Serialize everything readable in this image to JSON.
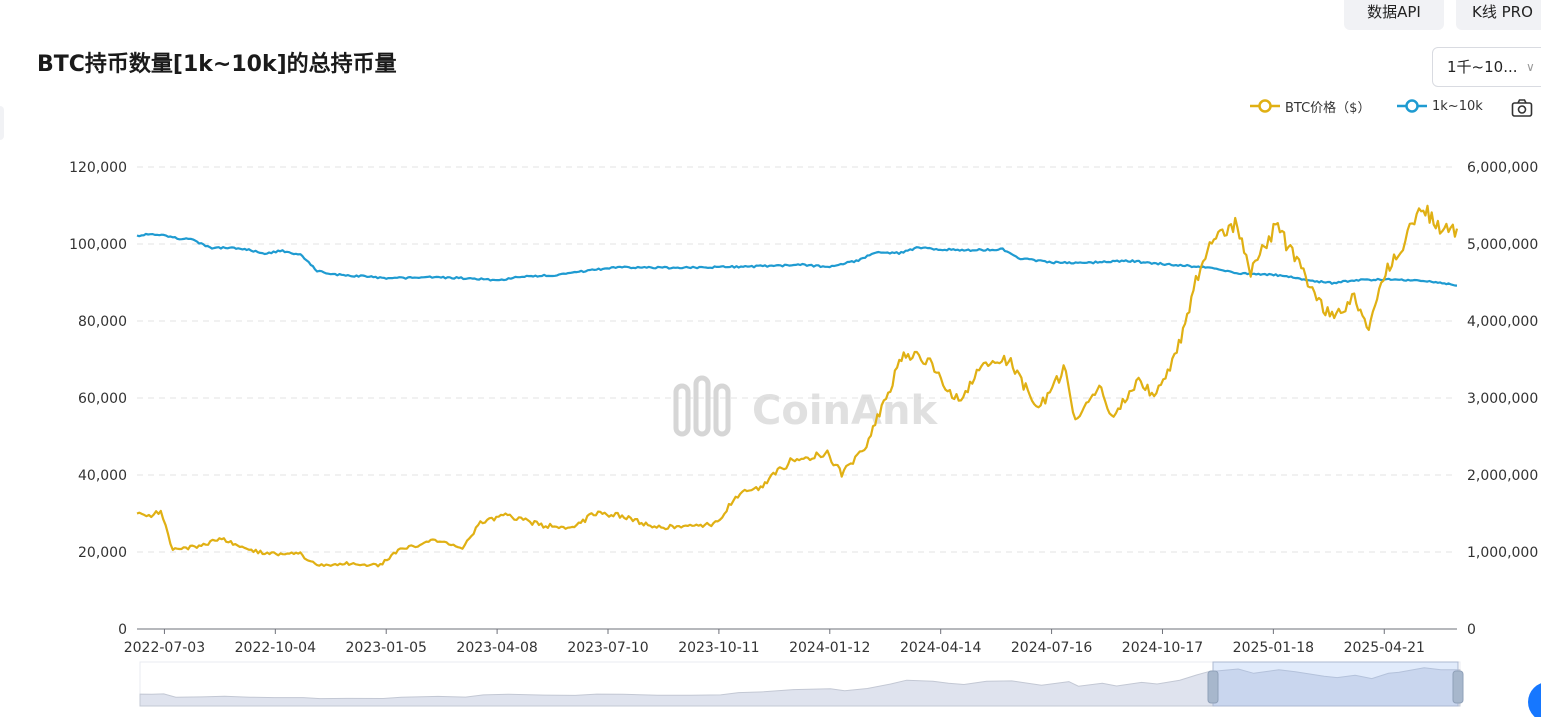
{
  "toolbar": {
    "api_label": "数据API",
    "kline_label": "K线 PRO"
  },
  "title": "BTC持币数量[1k~10k]的总持币量",
  "selector": {
    "value": "1千~10..."
  },
  "colors": {
    "price": "#e0b014",
    "holdings": "#1f9bd1",
    "grid": "#e3e3e3"
  },
  "watermark": "CoinAnk",
  "chart_data": {
    "type": "line",
    "title": "BTC持币数量[1k~10k]的总持币量",
    "legend": "top-right",
    "grid": true,
    "x_ticks": [
      "2022-07-03",
      "2022-10-04",
      "2023-01-05",
      "2023-04-08",
      "2023-07-10",
      "2023-10-11",
      "2024-01-12",
      "2024-04-14",
      "2024-07-16",
      "2024-10-17",
      "2025-01-18",
      "2025-04-21"
    ],
    "x_range": [
      "2022-06-10",
      "2025-06-21"
    ],
    "y_left": {
      "ticks": [
        "120,000",
        "100,000",
        "80,000",
        "60,000",
        "40,000",
        "20,000",
        "0"
      ],
      "range": [
        0,
        120000
      ]
    },
    "y_right": {
      "ticks": [
        "6,000,000",
        "5,000,000",
        "4,000,000",
        "3,000,000",
        "2,000,000",
        "1,000,000",
        "0"
      ],
      "range": [
        0,
        6000000
      ]
    },
    "series": [
      {
        "name": "BTC价格（$）",
        "axis": "left",
        "points": [
          [
            "2022-06-10",
            30000
          ],
          [
            "2022-06-20",
            29500
          ],
          [
            "2022-06-30",
            30500
          ],
          [
            "2022-07-10",
            20500
          ],
          [
            "2022-08-01",
            21500
          ],
          [
            "2022-08-20",
            23500
          ],
          [
            "2022-09-10",
            20500
          ],
          [
            "2022-10-01",
            19500
          ],
          [
            "2022-10-25",
            19500
          ],
          [
            "2022-11-08",
            16500
          ],
          [
            "2022-12-01",
            17000
          ],
          [
            "2022-12-31",
            16600
          ],
          [
            "2023-01-15",
            20500
          ],
          [
            "2023-02-15",
            23000
          ],
          [
            "2023-03-10",
            21000
          ],
          [
            "2023-03-25",
            27500
          ],
          [
            "2023-04-15",
            29500
          ],
          [
            "2023-05-15",
            27000
          ],
          [
            "2023-06-10",
            26000
          ],
          [
            "2023-06-28",
            30000
          ],
          [
            "2023-07-20",
            29500
          ],
          [
            "2023-08-18",
            26500
          ],
          [
            "2023-09-15",
            26500
          ],
          [
            "2023-10-10",
            27500
          ],
          [
            "2023-10-25",
            34500
          ],
          [
            "2023-11-15",
            37000
          ],
          [
            "2023-12-10",
            43500
          ],
          [
            "2024-01-10",
            46000
          ],
          [
            "2024-01-22",
            40000
          ],
          [
            "2024-02-10",
            47000
          ],
          [
            "2024-03-01",
            61000
          ],
          [
            "2024-03-14",
            72000
          ],
          [
            "2024-04-05",
            69000
          ],
          [
            "2024-04-18",
            63000
          ],
          [
            "2024-05-01",
            59000
          ],
          [
            "2024-05-20",
            69000
          ],
          [
            "2024-06-10",
            70000
          ],
          [
            "2024-07-05",
            57000
          ],
          [
            "2024-07-28",
            68000
          ],
          [
            "2024-08-05",
            54000
          ],
          [
            "2024-08-25",
            63000
          ],
          [
            "2024-09-06",
            54500
          ],
          [
            "2024-09-27",
            65500
          ],
          [
            "2024-10-10",
            60500
          ],
          [
            "2024-10-29",
            72000
          ],
          [
            "2024-11-12",
            88000
          ],
          [
            "2024-11-22",
            98000
          ],
          [
            "2024-12-17",
            106000
          ],
          [
            "2024-12-30",
            93000
          ],
          [
            "2025-01-20",
            104000
          ],
          [
            "2025-02-03",
            98000
          ],
          [
            "2025-02-27",
            84000
          ],
          [
            "2025-03-10",
            80000
          ],
          [
            "2025-03-25",
            87000
          ],
          [
            "2025-04-08",
            77000
          ],
          [
            "2025-04-22",
            93000
          ],
          [
            "2025-05-01",
            96000
          ],
          [
            "2025-05-22",
            110000
          ],
          [
            "2025-06-05",
            104000
          ],
          [
            "2025-06-21",
            104000
          ]
        ]
      },
      {
        "name": "1k~10k",
        "axis": "right",
        "points": [
          [
            "2022-06-10",
            5110000
          ],
          [
            "2022-06-25",
            5130000
          ],
          [
            "2022-07-10",
            5080000
          ],
          [
            "2022-07-25",
            5060000
          ],
          [
            "2022-08-10",
            4950000
          ],
          [
            "2022-08-25",
            4950000
          ],
          [
            "2022-09-10",
            4930000
          ],
          [
            "2022-09-25",
            4880000
          ],
          [
            "2022-10-10",
            4910000
          ],
          [
            "2022-10-25",
            4860000
          ],
          [
            "2022-11-08",
            4650000
          ],
          [
            "2022-11-25",
            4600000
          ],
          [
            "2022-12-20",
            4580000
          ],
          [
            "2023-01-05",
            4550000
          ],
          [
            "2023-02-05",
            4570000
          ],
          [
            "2023-03-05",
            4560000
          ],
          [
            "2023-04-08",
            4530000
          ],
          [
            "2023-05-01",
            4580000
          ],
          [
            "2023-06-01",
            4600000
          ],
          [
            "2023-06-25",
            4660000
          ],
          [
            "2023-07-20",
            4700000
          ],
          [
            "2023-09-01",
            4690000
          ],
          [
            "2023-10-11",
            4700000
          ],
          [
            "2023-11-15",
            4710000
          ],
          [
            "2023-12-20",
            4730000
          ],
          [
            "2024-01-12",
            4700000
          ],
          [
            "2024-02-05",
            4790000
          ],
          [
            "2024-02-20",
            4900000
          ],
          [
            "2024-03-10",
            4880000
          ],
          [
            "2024-03-25",
            4950000
          ],
          [
            "2024-04-30",
            4920000
          ],
          [
            "2024-06-05",
            4930000
          ],
          [
            "2024-06-20",
            4810000
          ],
          [
            "2024-07-16",
            4760000
          ],
          [
            "2024-08-20",
            4760000
          ],
          [
            "2024-09-20",
            4780000
          ],
          [
            "2024-10-17",
            4740000
          ],
          [
            "2024-11-20",
            4700000
          ],
          [
            "2024-12-20",
            4620000
          ],
          [
            "2025-01-20",
            4600000
          ],
          [
            "2025-02-20",
            4520000
          ],
          [
            "2025-03-10",
            4490000
          ],
          [
            "2025-03-25",
            4530000
          ],
          [
            "2025-04-21",
            4540000
          ],
          [
            "2025-05-20",
            4520000
          ],
          [
            "2025-06-05",
            4500000
          ],
          [
            "2025-06-21",
            4460000
          ]
        ]
      }
    ]
  }
}
